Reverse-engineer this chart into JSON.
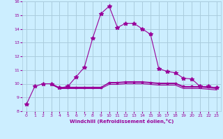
{
  "xlabel": "Windchill (Refroidissement éolien,°C)",
  "bg_color": "#cceeff",
  "grid_color": "#aaccdd",
  "line_color": "#990099",
  "xlim": [
    -0.5,
    23.5
  ],
  "ylim": [
    8,
    16
  ],
  "xticks": [
    0,
    1,
    2,
    3,
    4,
    5,
    6,
    7,
    8,
    9,
    10,
    11,
    12,
    13,
    14,
    15,
    16,
    17,
    18,
    19,
    20,
    21,
    22,
    23
  ],
  "yticks": [
    8,
    9,
    10,
    11,
    12,
    13,
    14,
    15,
    16
  ],
  "series": [
    {
      "x": [
        0,
        1,
        2,
        3,
        4,
        5,
        6,
        7,
        8,
        9,
        10,
        11,
        12,
        13,
        14,
        15,
        16,
        17,
        18,
        19,
        20,
        21,
        22,
        23
      ],
      "y": [
        8.5,
        9.8,
        10.0,
        10.0,
        9.7,
        9.8,
        10.5,
        11.2,
        13.3,
        15.1,
        15.65,
        14.1,
        14.4,
        14.4,
        14.0,
        13.6,
        11.1,
        10.9,
        10.8,
        10.4,
        10.35,
        9.8,
        9.8,
        9.7
      ],
      "marker": "*",
      "markersize": 4
    },
    {
      "x": [
        3,
        4,
        5,
        6,
        7,
        8,
        9,
        10,
        11,
        12,
        13,
        14,
        15,
        16,
        17,
        18,
        19,
        20,
        21,
        22,
        23
      ],
      "y": [
        10.0,
        9.7,
        9.7,
        9.7,
        9.7,
        9.7,
        9.7,
        10.1,
        10.1,
        10.15,
        10.15,
        10.15,
        10.1,
        10.05,
        10.05,
        10.05,
        9.8,
        9.8,
        9.8,
        9.75,
        9.7
      ],
      "marker": "*",
      "markersize": 2.5
    },
    {
      "x": [
        3,
        4,
        5,
        6,
        7,
        8,
        9,
        10,
        11,
        12,
        13,
        14,
        15,
        16,
        17,
        18,
        19,
        20,
        21,
        22,
        23
      ],
      "y": [
        10.0,
        9.7,
        9.75,
        9.75,
        9.75,
        9.75,
        9.75,
        10.05,
        10.05,
        10.1,
        10.1,
        10.1,
        10.05,
        10.0,
        10.0,
        10.0,
        9.75,
        9.75,
        9.75,
        9.7,
        9.65
      ],
      "marker": null,
      "markersize": 0
    },
    {
      "x": [
        3,
        4,
        5,
        6,
        7,
        8,
        9,
        10,
        11,
        12,
        13,
        14,
        15,
        16,
        17,
        18,
        19,
        20,
        21,
        22,
        23
      ],
      "y": [
        9.95,
        9.65,
        9.65,
        9.65,
        9.65,
        9.65,
        9.65,
        9.95,
        9.95,
        10.0,
        10.0,
        10.0,
        9.95,
        9.9,
        9.9,
        9.9,
        9.65,
        9.65,
        9.65,
        9.6,
        9.55
      ],
      "marker": null,
      "markersize": 0
    }
  ]
}
